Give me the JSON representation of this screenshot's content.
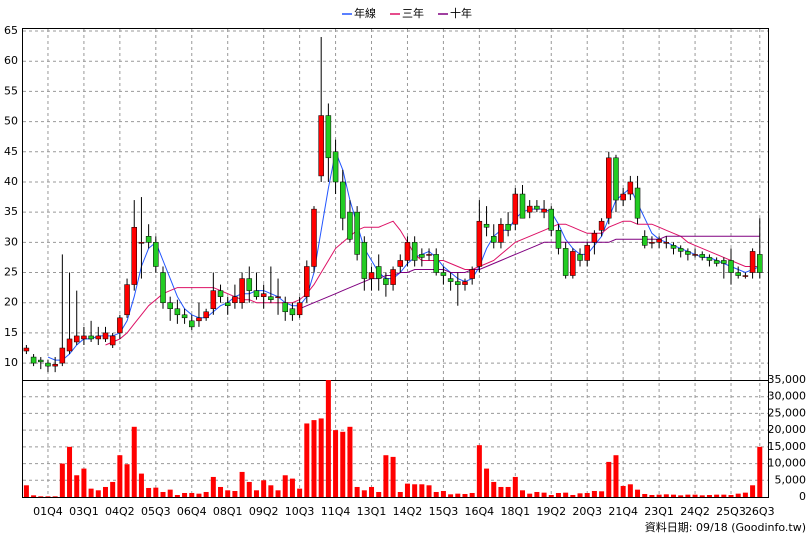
{
  "chart_data": {
    "type": "candlestick",
    "categories": [
      null,
      null,
      null,
      "01Q4",
      null,
      null,
      null,
      null,
      "03Q1",
      null,
      null,
      null,
      null,
      "04Q2",
      null,
      null,
      null,
      null,
      "05Q3",
      null,
      null,
      null,
      null,
      "06Q4",
      null,
      null,
      null,
      null,
      "08Q1",
      null,
      null,
      null,
      null,
      "09Q2",
      null,
      null,
      null,
      null,
      "10Q3",
      null,
      null,
      null,
      null,
      "11Q4",
      null,
      null,
      null,
      null,
      "13Q1",
      null,
      null,
      null,
      null,
      "14Q2",
      null,
      null,
      null,
      null,
      "15Q3",
      null,
      null,
      null,
      null,
      "16Q4",
      null,
      null,
      null,
      null,
      "18Q1",
      null,
      null,
      null,
      null,
      "19Q2",
      null,
      null,
      null,
      null,
      "20Q3",
      null,
      null,
      null,
      null,
      "21Q4",
      null,
      null,
      null,
      null,
      "23Q1",
      null,
      null,
      null,
      null,
      "24Q2",
      null,
      null,
      null,
      null,
      "25Q3",
      null,
      null,
      null,
      "26Q3"
    ],
    "open": [
      12,
      11,
      10.5,
      10,
      9.5,
      10,
      12,
      13.5,
      14,
      14.5,
      14,
      14,
      13,
      15,
      18,
      23,
      30,
      31,
      30,
      25,
      20,
      19,
      18,
      17,
      17,
      17.5,
      19,
      22,
      20,
      20,
      20,
      24,
      22,
      21,
      21,
      21,
      20,
      19,
      18,
      21,
      26,
      41,
      51,
      45,
      40,
      35,
      35,
      30,
      24,
      26,
      24,
      23,
      26,
      27,
      30,
      28,
      28,
      28,
      25,
      24,
      23.5,
      23,
      24,
      26,
      33,
      31,
      30,
      33,
      33,
      38,
      35,
      36,
      35,
      35.5,
      32,
      29,
      24.5,
      28,
      27,
      30,
      32,
      34,
      44,
      37,
      38,
      39,
      31,
      30,
      30,
      30,
      29.5,
      29,
      28.5,
      28,
      28,
      27.5,
      27,
      27,
      27,
      25,
      24.5,
      25,
      28
    ],
    "high": [
      13,
      11.5,
      11,
      10.5,
      11,
      28,
      25,
      22,
      16,
      17,
      16,
      16,
      15,
      18,
      24,
      37,
      37.5,
      33,
      31,
      26,
      21,
      20.5,
      19,
      18,
      20,
      19,
      25,
      23,
      21,
      23,
      25,
      26,
      25,
      23,
      26,
      24,
      21,
      20,
      21,
      27,
      36,
      64,
      53,
      47,
      42,
      37,
      36,
      31,
      26,
      28,
      25,
      26,
      28,
      31,
      31,
      29,
      29,
      29,
      26,
      25,
      25,
      24,
      26,
      37,
      36,
      33,
      34,
      35,
      39,
      39.5,
      37,
      37,
      37,
      36,
      33,
      30,
      29,
      29,
      30,
      32,
      34,
      45,
      44.5,
      39,
      41,
      41,
      32,
      31,
      31,
      31,
      30,
      29.5,
      29,
      29,
      28.5,
      28,
      27.5,
      27.5,
      29,
      26,
      25,
      29,
      34
    ],
    "low": [
      11.5,
      9.5,
      9,
      8.5,
      8.5,
      9.5,
      11.5,
      13,
      13,
      13.5,
      13,
      13.5,
      12.5,
      14,
      17.5,
      22,
      24,
      29,
      25,
      19,
      17,
      16.5,
      16.5,
      15.5,
      16,
      17,
      18,
      20,
      18,
      19,
      19,
      20,
      20.5,
      19,
      20,
      18,
      17,
      17,
      17.5,
      20,
      25,
      40,
      40,
      38,
      32,
      30,
      27,
      22,
      22,
      22,
      21,
      22,
      25,
      26,
      26,
      26,
      27,
      24.5,
      23,
      22,
      19.5,
      22,
      23,
      25,
      31,
      29,
      29,
      31,
      32,
      34,
      34,
      35,
      34,
      31,
      28,
      24,
      24,
      26,
      26,
      28,
      31,
      33,
      35,
      36,
      37,
      33,
      29,
      29,
      29,
      29,
      28,
      27.5,
      27,
      27.5,
      27,
      26,
      26,
      24,
      23,
      24,
      24,
      24,
      24
    ],
    "close": [
      12.5,
      10,
      10.2,
      9.5,
      9.8,
      12.5,
      14,
      14.5,
      14.5,
      14,
      14.5,
      15,
      14.5,
      17.5,
      23,
      32.5,
      30,
      30,
      26,
      20,
      19,
      18,
      17.5,
      16,
      17.5,
      18.5,
      22,
      21,
      19.5,
      21,
      24,
      22,
      21,
      21.5,
      20.5,
      21,
      18.5,
      18,
      20,
      26,
      35.5,
      51,
      44,
      40,
      34,
      30.5,
      28,
      24,
      25,
      24,
      23,
      25.5,
      27,
      30,
      27,
      27.5,
      28,
      25,
      24.5,
      23.5,
      23,
      23.5,
      25.5,
      33.5,
      32.5,
      30,
      33,
      32,
      38,
      34,
      36,
      35.5,
      35.5,
      32,
      29,
      24.5,
      28.5,
      27,
      29.5,
      31.5,
      33.5,
      44,
      37,
      38,
      40,
      34,
      29.5,
      30,
      30.5,
      30,
      29,
      28.5,
      28,
      28,
      27.5,
      27,
      26.5,
      26.5,
      25,
      24.5,
      24.5,
      28.5,
      25
    ],
    "up_color": "#ff0000",
    "down_color": "#22cc22",
    "series": [
      {
        "name": "年線",
        "color": "#2255ff",
        "values": [
          null,
          null,
          null,
          11,
          10.5,
          10.5,
          11.5,
          13,
          14,
          14,
          14.5,
          14.5,
          14.5,
          15,
          17,
          21,
          26,
          29,
          30,
          27,
          24,
          21,
          19,
          18,
          17.5,
          17.5,
          18.5,
          19.5,
          20,
          21,
          21.5,
          21.5,
          22,
          22,
          21.5,
          21,
          20,
          19.5,
          19.5,
          21,
          25,
          32,
          39,
          45,
          42,
          37,
          33,
          29,
          27,
          25,
          24,
          24,
          25,
          26.5,
          27.5,
          28,
          28.5,
          27.5,
          26,
          25,
          24,
          23.5,
          24,
          26,
          29,
          31,
          32,
          32,
          34,
          35,
          35.5,
          35.5,
          35.5,
          35,
          33,
          30.5,
          29,
          28,
          28,
          29.5,
          31,
          34,
          37,
          38,
          39,
          36.5,
          34,
          31.5,
          30.5,
          30,
          29.5,
          29,
          28.5,
          28,
          27.5,
          27.5,
          27,
          26.5,
          26,
          25.5,
          25,
          25.5,
          26
        ]
      },
      {
        "name": "三年",
        "color": "#dd1166",
        "values": [
          null,
          null,
          null,
          null,
          null,
          null,
          null,
          null,
          null,
          null,
          null,
          13,
          13.5,
          14,
          15,
          16.5,
          18,
          19.5,
          20.5,
          21.5,
          22,
          22.5,
          22.5,
          22.5,
          22.5,
          22.5,
          22.5,
          22,
          21.5,
          21,
          20.5,
          20.5,
          20,
          20,
          20,
          20,
          20,
          20,
          20.5,
          21.5,
          23,
          25,
          27,
          29,
          30,
          31,
          32,
          32.5,
          32.5,
          32.5,
          33,
          33.5,
          32,
          30,
          28,
          27,
          27,
          27,
          27,
          26.5,
          26,
          25.5,
          25.5,
          26,
          26.5,
          27,
          28,
          29,
          30,
          30.5,
          31,
          31.5,
          32,
          32.5,
          33,
          33,
          32.5,
          32,
          31.5,
          31.5,
          31.5,
          32.5,
          33,
          33.5,
          33.5,
          33,
          33,
          33,
          32.5,
          32,
          31.5,
          31,
          30,
          29.5,
          29,
          28.5,
          28,
          27.5,
          27,
          26.5,
          26,
          26,
          26
        ]
      },
      {
        "name": "十年",
        "color": "#800080",
        "values": [
          null,
          null,
          null,
          null,
          null,
          null,
          null,
          null,
          null,
          null,
          null,
          null,
          null,
          null,
          null,
          null,
          null,
          null,
          null,
          null,
          null,
          null,
          null,
          null,
          null,
          null,
          null,
          null,
          null,
          null,
          null,
          null,
          null,
          null,
          null,
          null,
          null,
          null,
          19,
          19.5,
          20,
          20.5,
          21,
          21.5,
          22,
          22.5,
          23,
          23.5,
          24,
          24,
          24.5,
          24.5,
          25,
          25,
          25.5,
          25.5,
          25.5,
          25.5,
          25.5,
          25,
          25,
          25,
          25.5,
          25.5,
          26,
          26.5,
          27,
          27.5,
          28,
          28.5,
          29,
          29.5,
          30,
          30,
          30,
          30,
          30,
          30,
          30,
          30,
          30,
          30,
          30.5,
          30.5,
          30.5,
          30.5,
          30.5,
          30.5,
          30.5,
          31,
          31,
          31,
          31,
          31,
          31,
          31,
          31,
          31,
          31,
          31,
          31,
          31,
          31
        ]
      },
      {
        "name": "volume",
        "axis": "y2",
        "color": "#ff0000",
        "values": [
          3500,
          500,
          200,
          200,
          200,
          10000,
          15000,
          6500,
          8500,
          2500,
          2000,
          3000,
          4500,
          12500,
          9800,
          21000,
          7000,
          2700,
          2800,
          1500,
          2200,
          600,
          1200,
          1200,
          1000,
          1500,
          6000,
          3000,
          2000,
          1800,
          7500,
          4500,
          2000,
          5000,
          3500,
          2000,
          6500,
          5500,
          2500,
          22000,
          23000,
          23500,
          35000,
          20000,
          19500,
          21000,
          3000,
          2000,
          3000,
          1500,
          12500,
          12000,
          1500,
          4000,
          3800,
          3800,
          3500,
          1500,
          1800,
          800,
          1000,
          900,
          1200,
          15500,
          8500,
          4500,
          3000,
          3000,
          6000,
          2000,
          1000,
          1500,
          1300,
          600,
          1200,
          1300,
          600,
          1100,
          1200,
          1800,
          1700,
          10500,
          12500,
          3300,
          3800,
          2200,
          900,
          600,
          700,
          800,
          700,
          500,
          700,
          700,
          500,
          600,
          700,
          700,
          600,
          1000,
          1300,
          3500,
          15000
        ]
      }
    ],
    "ylim": [
      7.2,
      65.5
    ],
    "yticks": [
      10,
      15,
      20,
      25,
      30,
      35,
      40,
      45,
      50,
      55,
      60,
      65
    ],
    "y2lim": [
      0,
      35000
    ],
    "y2ticks": [
      0,
      {
        "value": 5000,
        "label": "5,000"
      },
      {
        "value": 10000,
        "label": "10,000"
      },
      {
        "value": 15000,
        "label": "15,000"
      },
      {
        "value": 20000,
        "label": "20,000"
      },
      {
        "value": 25000,
        "label": "25,000"
      },
      {
        "value": 30000,
        "label": "30,000"
      },
      {
        "value": 35000,
        "label": "35,000"
      }
    ],
    "grid": true,
    "footer": "資料日期: 09/18  (Goodinfo.tw)"
  }
}
